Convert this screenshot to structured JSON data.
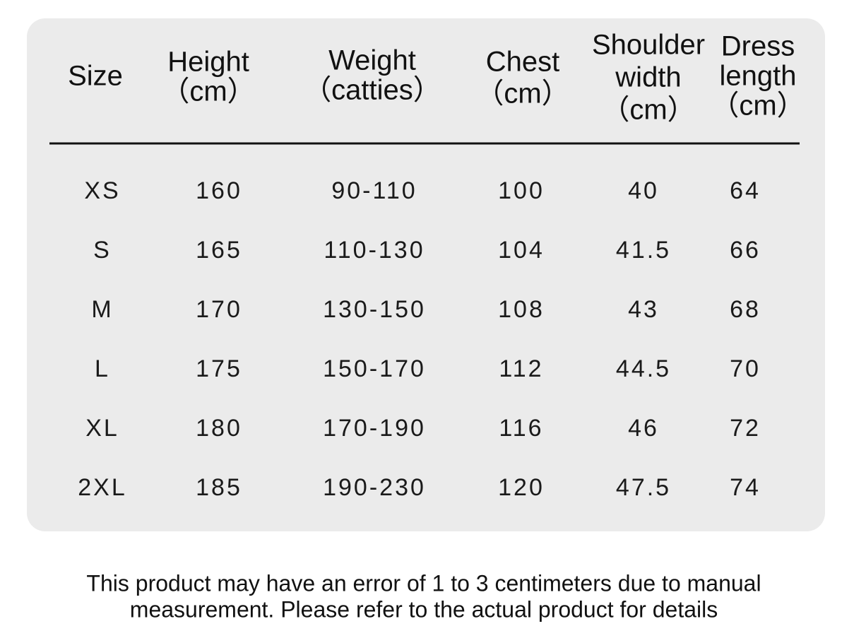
{
  "table": {
    "headers": [
      [
        "Size"
      ],
      [
        "Height",
        "（cm）"
      ],
      [
        "Weight",
        "（catties）"
      ],
      [
        "Chest",
        "（cm）"
      ],
      [
        "Shoulder",
        "width",
        "（cm）"
      ],
      [
        "Dress",
        "length",
        "（cm）"
      ]
    ],
    "rows": [
      [
        "XS",
        "160",
        "90-110",
        "100",
        "40",
        "64"
      ],
      [
        "S",
        "165",
        "110-130",
        "104",
        "41.5",
        "66"
      ],
      [
        "M",
        "170",
        "130-150",
        "108",
        "43",
        "68"
      ],
      [
        "L",
        "175",
        "150-170",
        "112",
        "44.5",
        "70"
      ],
      [
        "XL",
        "180",
        "170-190",
        "116",
        "46",
        "72"
      ],
      [
        "2XL",
        "185",
        "190-230",
        "120",
        "47.5",
        "74"
      ]
    ]
  },
  "footnote": [
    "This product may have an error of 1 to 3 centimeters due to manual",
    "measurement. Please refer to the actual product for details"
  ]
}
